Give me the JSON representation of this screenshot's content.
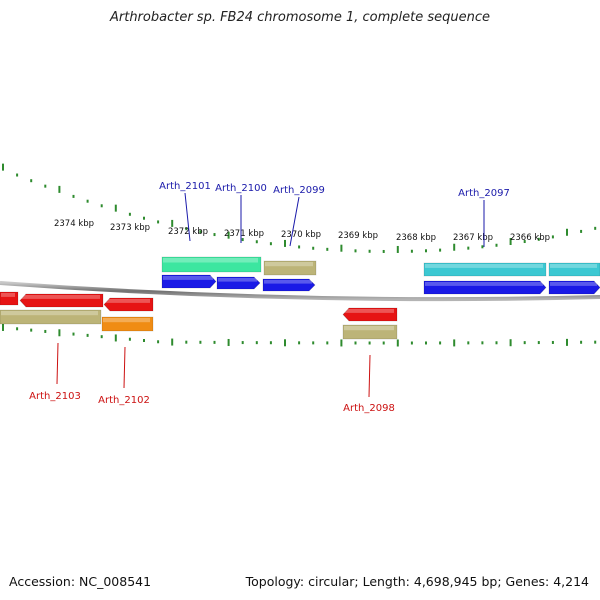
{
  "title": "Arthrobacter sp. FB24 chromosome 1, complete sequence",
  "footer": {
    "accession": "Accession: NC_008541",
    "summary": "Topology: circular; Length: 4,698,945 bp; Genes: 4,214"
  },
  "colors": {
    "tick": "#2e8b2e",
    "backbone": "#808080",
    "forward_label": "#1a1aaa",
    "reverse_label": "#cc1111",
    "blue": "#1a1ae6",
    "green": "#3ce6a0",
    "cyan": "#3cc8d2",
    "khaki": "#bcb478",
    "red": "#e61414",
    "orange": "#f08c14"
  },
  "scale": {
    "labels": [
      "2374 kbp",
      "2373 kbp",
      "2372 kbp",
      "2371 kbp",
      "2370 kbp",
      "2369 kbp",
      "2368 kbp",
      "2367 kbp",
      "2366 kbp"
    ]
  },
  "labels": {
    "forward": [
      "Arth_2101",
      "Arth_2100",
      "Arth_2099",
      "Arth_2097"
    ],
    "reverse": [
      "Arth_2103",
      "Arth_2102",
      "Arth_2098"
    ]
  },
  "features": [
    {
      "strand": "forward",
      "track": "cog",
      "color": "green"
    },
    {
      "strand": "forward",
      "track": "cog",
      "color": "khaki"
    },
    {
      "strand": "forward",
      "track": "cog",
      "color": "cyan"
    },
    {
      "strand": "forward",
      "track": "cog",
      "color": "cyan"
    },
    {
      "strand": "forward",
      "track": "gene",
      "color": "blue"
    },
    {
      "strand": "forward",
      "track": "gene",
      "color": "blue"
    },
    {
      "strand": "forward",
      "track": "gene",
      "color": "blue"
    },
    {
      "strand": "forward",
      "track": "gene",
      "color": "blue"
    },
    {
      "strand": "forward",
      "track": "gene",
      "color": "blue"
    },
    {
      "strand": "reverse",
      "track": "gene",
      "color": "red"
    },
    {
      "strand": "reverse",
      "track": "gene",
      "color": "red"
    },
    {
      "strand": "reverse",
      "track": "gene",
      "color": "red"
    },
    {
      "strand": "reverse",
      "track": "gene",
      "color": "red"
    },
    {
      "strand": "reverse",
      "track": "cog",
      "color": "khaki"
    },
    {
      "strand": "reverse",
      "track": "cog",
      "color": "orange"
    },
    {
      "strand": "reverse",
      "track": "cog",
      "color": "khaki"
    }
  ]
}
